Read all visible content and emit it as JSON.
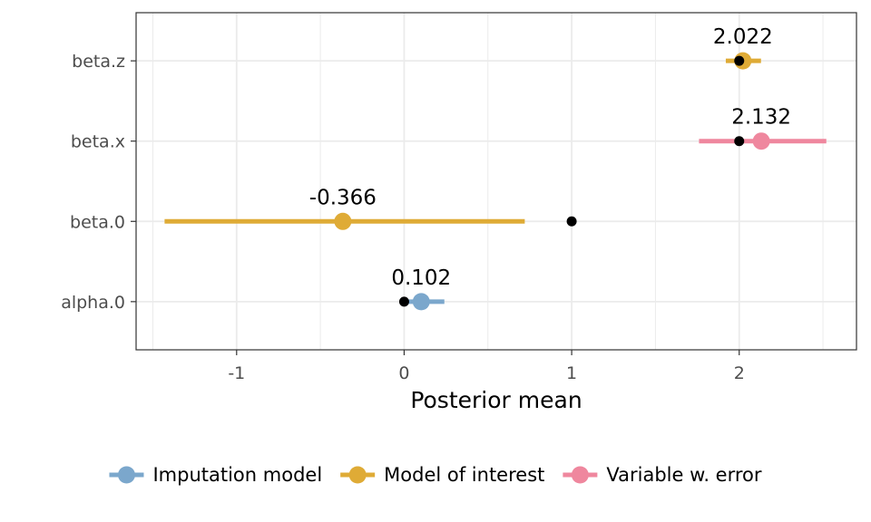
{
  "chart_data": {
    "type": "forest",
    "title": "",
    "xlabel": "Posterior mean",
    "ylabel": "",
    "xlim": [
      -1.6,
      2.7
    ],
    "x_ticks": [
      -1,
      0,
      1,
      2
    ],
    "x_tick_labels": [
      "-1",
      "0",
      "1",
      "2"
    ],
    "categories": [
      "beta.z",
      "beta.x",
      "beta.0",
      "alpha.0"
    ],
    "grid": true,
    "legend_position": "bottom",
    "series": [
      {
        "name": "Imputation model",
        "color": "#7ba7cc"
      },
      {
        "name": "Model of interest",
        "color": "#dfab36"
      },
      {
        "name": "Variable w. error",
        "color": "#ef879e"
      }
    ],
    "estimates": [
      {
        "parameter": "beta.z",
        "series": "Model of interest",
        "mean": 2.022,
        "lower": 1.92,
        "upper": 2.13,
        "label": "2.022"
      },
      {
        "parameter": "beta.x",
        "series": "Variable w. error",
        "mean": 2.132,
        "lower": 1.76,
        "upper": 2.52,
        "label": "2.132"
      },
      {
        "parameter": "beta.0",
        "series": "Model of interest",
        "mean": -0.366,
        "lower": -1.43,
        "upper": 0.72,
        "label": "-0.366"
      },
      {
        "parameter": "alpha.0",
        "series": "Imputation model",
        "mean": 0.102,
        "lower": 0.0,
        "upper": 0.24,
        "label": "0.102"
      }
    ],
    "true_values": [
      {
        "parameter": "beta.z",
        "value": 2
      },
      {
        "parameter": "beta.x",
        "value": 2
      },
      {
        "parameter": "beta.0",
        "value": 1
      },
      {
        "parameter": "alpha.0",
        "value": 0
      }
    ]
  }
}
